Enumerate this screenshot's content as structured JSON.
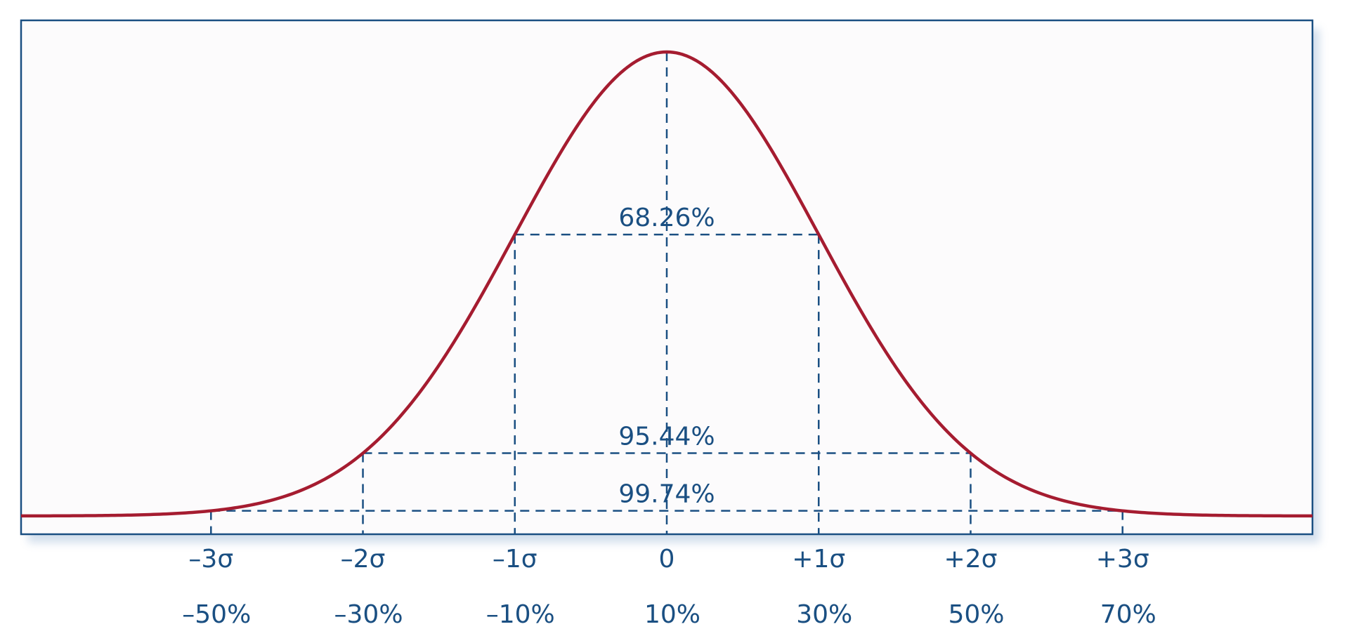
{
  "chart_data": {
    "type": "line",
    "x_domain": [
      -4.25,
      4.25
    ],
    "y_domain": [
      0,
      1
    ],
    "curve": {
      "shape": "normal",
      "mean": 0,
      "sigma": 1,
      "color": "#A51C30"
    },
    "sigma_ticks": [
      {
        "x": -3,
        "sigma_label": "–3σ",
        "percent_label": "–50%"
      },
      {
        "x": -2,
        "sigma_label": "–2σ",
        "percent_label": "–30%"
      },
      {
        "x": -1,
        "sigma_label": "–1σ",
        "percent_label": "–10%"
      },
      {
        "x": 0,
        "sigma_label": "0",
        "percent_label": "10%"
      },
      {
        "x": 1,
        "sigma_label": "+1σ",
        "percent_label": "30%"
      },
      {
        "x": 2,
        "sigma_label": "+2σ",
        "percent_label": "50%"
      },
      {
        "x": 3,
        "sigma_label": "+3σ",
        "percent_label": "70%"
      }
    ],
    "intervals": [
      {
        "sigma": 1,
        "label": "68.26%"
      },
      {
        "sigma": 2,
        "label": "95.44%"
      },
      {
        "sigma": 3,
        "label": "99.74%"
      }
    ],
    "title": "",
    "xlabel": "",
    "ylabel": "",
    "grid": false,
    "colors": {
      "frame": "#1A4F82",
      "annotation": "#1A4F82",
      "curve": "#A51C30",
      "background": "#FCFBFC"
    }
  }
}
